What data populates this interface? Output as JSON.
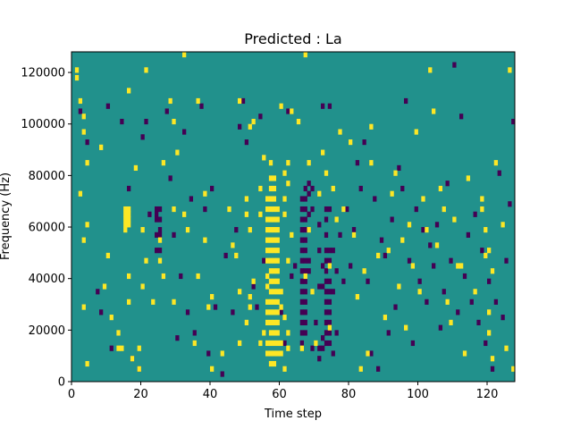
{
  "chart_data": {
    "type": "heatmap",
    "title": "Predicted : La",
    "xlabel": "Time step",
    "ylabel": "Frequency (Hz)",
    "xlim": [
      0,
      128
    ],
    "ylim": [
      0,
      128000
    ],
    "x_ticks": [
      "0",
      "20",
      "40",
      "60",
      "80",
      "100",
      "120"
    ],
    "x_tick_values": [
      0,
      20,
      40,
      60,
      80,
      100,
      120
    ],
    "y_ticks": [
      "0",
      "20000",
      "40000",
      "60000",
      "80000",
      "100000",
      "120000"
    ],
    "y_tick_values": [
      0,
      20000,
      40000,
      60000,
      80000,
      100000,
      120000
    ],
    "colormap": "viridis",
    "colors": {
      "low": "#440154",
      "mid": "#21918c",
      "high": "#fde725"
    },
    "grid": false,
    "legend": "none",
    "background_level": "mid",
    "high_cells": [
      [
        1,
        120000
      ],
      [
        1,
        117000
      ],
      [
        2,
        108000
      ],
      [
        3,
        102000
      ],
      [
        3,
        96000
      ],
      [
        4,
        84000
      ],
      [
        2,
        72000
      ],
      [
        4,
        60000
      ],
      [
        3,
        54000
      ],
      [
        3,
        28000
      ],
      [
        4,
        6000
      ],
      [
        8,
        90000
      ],
      [
        9,
        36000
      ],
      [
        10,
        48000
      ],
      [
        11,
        24000
      ],
      [
        13,
        18000
      ],
      [
        13,
        12000
      ],
      [
        14,
        12000
      ],
      [
        16,
        30000
      ],
      [
        16,
        40000
      ],
      [
        16,
        112000
      ],
      [
        17,
        8000
      ],
      [
        15,
        66000
      ],
      [
        15,
        64000
      ],
      [
        15,
        62000
      ],
      [
        15,
        60000
      ],
      [
        15,
        58000
      ],
      [
        16,
        66000
      ],
      [
        16,
        64000
      ],
      [
        16,
        62000
      ],
      [
        16,
        60000
      ],
      [
        18,
        82000
      ],
      [
        19,
        4000
      ],
      [
        19,
        12000
      ],
      [
        20,
        36000
      ],
      [
        20,
        58000
      ],
      [
        21,
        120000
      ],
      [
        21,
        46000
      ],
      [
        23,
        30000
      ],
      [
        25,
        46000
      ],
      [
        25,
        54000
      ],
      [
        26,
        40000
      ],
      [
        26,
        84000
      ],
      [
        28,
        108000
      ],
      [
        29,
        30000
      ],
      [
        29,
        66000
      ],
      [
        29,
        100000
      ],
      [
        30,
        88000
      ],
      [
        32,
        64000
      ],
      [
        32,
        126000
      ],
      [
        33,
        58000
      ],
      [
        35,
        14000
      ],
      [
        36,
        40000
      ],
      [
        36,
        108000
      ],
      [
        38,
        72000
      ],
      [
        38,
        54000
      ],
      [
        39,
        28000
      ],
      [
        40,
        32000
      ],
      [
        40,
        4000
      ],
      [
        43,
        10000
      ],
      [
        45,
        66000
      ],
      [
        46,
        52000
      ],
      [
        47,
        48000
      ],
      [
        48,
        14000
      ],
      [
        48,
        34000
      ],
      [
        48,
        108000
      ],
      [
        50,
        22000
      ],
      [
        50,
        64000
      ],
      [
        50,
        70000
      ],
      [
        51,
        28000
      ],
      [
        51,
        32000
      ],
      [
        51,
        98000
      ],
      [
        51,
        58000
      ],
      [
        52,
        100000
      ],
      [
        52,
        38000
      ],
      [
        54,
        14000
      ],
      [
        54,
        64000
      ],
      [
        54,
        74000
      ],
      [
        55,
        86000
      ],
      [
        55,
        18000
      ],
      [
        56,
        10000
      ],
      [
        56,
        14000
      ],
      [
        56,
        22000
      ],
      [
        56,
        26000
      ],
      [
        56,
        30000
      ],
      [
        56,
        36000
      ],
      [
        56,
        40000
      ],
      [
        56,
        46000
      ],
      [
        56,
        50000
      ],
      [
        56,
        54000
      ],
      [
        56,
        58000
      ],
      [
        56,
        62000
      ],
      [
        56,
        66000
      ],
      [
        56,
        70000
      ],
      [
        57,
        6000
      ],
      [
        57,
        10000
      ],
      [
        57,
        14000
      ],
      [
        57,
        18000
      ],
      [
        57,
        22000
      ],
      [
        57,
        26000
      ],
      [
        57,
        30000
      ],
      [
        57,
        34000
      ],
      [
        57,
        38000
      ],
      [
        57,
        42000
      ],
      [
        57,
        46000
      ],
      [
        57,
        50000
      ],
      [
        57,
        54000
      ],
      [
        57,
        58000
      ],
      [
        57,
        62000
      ],
      [
        57,
        66000
      ],
      [
        57,
        70000
      ],
      [
        57,
        74000
      ],
      [
        57,
        78000
      ],
      [
        57,
        84000
      ],
      [
        58,
        6000
      ],
      [
        58,
        10000
      ],
      [
        58,
        14000
      ],
      [
        58,
        18000
      ],
      [
        58,
        22000
      ],
      [
        58,
        26000
      ],
      [
        58,
        30000
      ],
      [
        58,
        34000
      ],
      [
        58,
        38000
      ],
      [
        58,
        42000
      ],
      [
        58,
        46000
      ],
      [
        58,
        50000
      ],
      [
        58,
        54000
      ],
      [
        58,
        58000
      ],
      [
        58,
        62000
      ],
      [
        58,
        66000
      ],
      [
        58,
        70000
      ],
      [
        58,
        74000
      ],
      [
        58,
        78000
      ],
      [
        59,
        10000
      ],
      [
        59,
        14000
      ],
      [
        59,
        18000
      ],
      [
        59,
        22000
      ],
      [
        59,
        26000
      ],
      [
        59,
        30000
      ],
      [
        59,
        34000
      ],
      [
        59,
        38000
      ],
      [
        59,
        42000
      ],
      [
        59,
        46000
      ],
      [
        59,
        50000
      ],
      [
        59,
        54000
      ],
      [
        59,
        58000
      ],
      [
        59,
        62000
      ],
      [
        59,
        66000
      ],
      [
        60,
        10000
      ],
      [
        60,
        14000
      ],
      [
        60,
        28000
      ],
      [
        60,
        34000
      ],
      [
        60,
        106000
      ],
      [
        61,
        4000
      ],
      [
        61,
        24000
      ],
      [
        61,
        80000
      ],
      [
        61,
        64000
      ],
      [
        61,
        70000
      ],
      [
        62,
        12000
      ],
      [
        62,
        18000
      ],
      [
        62,
        84000
      ],
      [
        62,
        76000
      ],
      [
        62,
        46000
      ],
      [
        63,
        56000
      ],
      [
        63,
        104000
      ],
      [
        65,
        100000
      ],
      [
        66,
        12000
      ],
      [
        67,
        40000
      ],
      [
        67,
        126000
      ],
      [
        68,
        84000
      ],
      [
        68,
        58000
      ],
      [
        69,
        34000
      ],
      [
        70,
        14000
      ],
      [
        71,
        72000
      ],
      [
        72,
        88000
      ],
      [
        73,
        80000
      ],
      [
        74,
        44000
      ],
      [
        74,
        20000
      ],
      [
        75,
        74000
      ],
      [
        76,
        62000
      ],
      [
        77,
        96000
      ],
      [
        78,
        66000
      ],
      [
        80,
        92000
      ],
      [
        81,
        56000
      ],
      [
        82,
        32000
      ],
      [
        83,
        4000
      ],
      [
        84,
        42000
      ],
      [
        85,
        10000
      ],
      [
        86,
        84000
      ],
      [
        86,
        98000
      ],
      [
        88,
        48000
      ],
      [
        90,
        24000
      ],
      [
        91,
        50000
      ],
      [
        92,
        72000
      ],
      [
        93,
        80000
      ],
      [
        94,
        36000
      ],
      [
        95,
        54000
      ],
      [
        96,
        20000
      ],
      [
        97,
        60000
      ],
      [
        98,
        44000
      ],
      [
        99,
        96000
      ],
      [
        100,
        34000
      ],
      [
        101,
        70000
      ],
      [
        102,
        58000
      ],
      [
        103,
        120000
      ],
      [
        104,
        104000
      ],
      [
        105,
        52000
      ],
      [
        106,
        74000
      ],
      [
        107,
        66000
      ],
      [
        108,
        30000
      ],
      [
        109,
        22000
      ],
      [
        110,
        62000
      ],
      [
        111,
        44000
      ],
      [
        112,
        44000
      ],
      [
        113,
        10000
      ],
      [
        114,
        78000
      ],
      [
        116,
        34000
      ],
      [
        118,
        70000
      ],
      [
        118,
        66000
      ],
      [
        119,
        58000
      ],
      [
        119,
        48000
      ],
      [
        120,
        50000
      ],
      [
        120,
        26000
      ],
      [
        120,
        18000
      ],
      [
        121,
        42000
      ],
      [
        121,
        8000
      ],
      [
        122,
        84000
      ],
      [
        124,
        60000
      ],
      [
        125,
        12000
      ],
      [
        126,
        120000
      ],
      [
        127,
        4000
      ]
    ],
    "low_cells": [
      [
        2,
        104000
      ],
      [
        4,
        92000
      ],
      [
        7,
        34000
      ],
      [
        8,
        26000
      ],
      [
        10,
        106000
      ],
      [
        11,
        12000
      ],
      [
        14,
        100000
      ],
      [
        16,
        74000
      ],
      [
        17,
        8000
      ],
      [
        19,
        4000
      ],
      [
        20,
        94000
      ],
      [
        21,
        100000
      ],
      [
        22,
        64000
      ],
      [
        24,
        66000
      ],
      [
        24,
        64000
      ],
      [
        24,
        62000
      ],
      [
        24,
        56000
      ],
      [
        25,
        66000
      ],
      [
        25,
        62000
      ],
      [
        25,
        58000
      ],
      [
        25,
        56000
      ],
      [
        24,
        50000
      ],
      [
        25,
        50000
      ],
      [
        27,
        104000
      ],
      [
        28,
        78000
      ],
      [
        29,
        56000
      ],
      [
        30,
        16000
      ],
      [
        31,
        40000
      ],
      [
        32,
        96000
      ],
      [
        33,
        26000
      ],
      [
        34,
        70000
      ],
      [
        35,
        18000
      ],
      [
        37,
        106000
      ],
      [
        38,
        66000
      ],
      [
        39,
        10000
      ],
      [
        40,
        74000
      ],
      [
        41,
        28000
      ],
      [
        43,
        2000
      ],
      [
        44,
        48000
      ],
      [
        46,
        26000
      ],
      [
        47,
        58000
      ],
      [
        48,
        98000
      ],
      [
        49,
        108000
      ],
      [
        50,
        92000
      ],
      [
        52,
        36000
      ],
      [
        53,
        28000
      ],
      [
        54,
        102000
      ],
      [
        55,
        46000
      ],
      [
        60,
        26000
      ],
      [
        61,
        14000
      ],
      [
        62,
        104000
      ],
      [
        63,
        40000
      ],
      [
        64,
        44000
      ],
      [
        66,
        70000
      ],
      [
        66,
        66000
      ],
      [
        66,
        62000
      ],
      [
        66,
        58000
      ],
      [
        66,
        54000
      ],
      [
        66,
        50000
      ],
      [
        66,
        46000
      ],
      [
        66,
        42000
      ],
      [
        66,
        38000
      ],
      [
        66,
        34000
      ],
      [
        66,
        30000
      ],
      [
        66,
        26000
      ],
      [
        66,
        22000
      ],
      [
        66,
        18000
      ],
      [
        66,
        14000
      ],
      [
        67,
        74000
      ],
      [
        67,
        70000
      ],
      [
        67,
        66000
      ],
      [
        67,
        62000
      ],
      [
        67,
        58000
      ],
      [
        67,
        54000
      ],
      [
        67,
        50000
      ],
      [
        67,
        46000
      ],
      [
        67,
        42000
      ],
      [
        67,
        38000
      ],
      [
        67,
        34000
      ],
      [
        67,
        30000
      ],
      [
        67,
        26000
      ],
      [
        67,
        22000
      ],
      [
        67,
        18000
      ],
      [
        68,
        76000
      ],
      [
        68,
        72000
      ],
      [
        68,
        64000
      ],
      [
        68,
        46000
      ],
      [
        68,
        42000
      ],
      [
        69,
        74000
      ],
      [
        69,
        66000
      ],
      [
        69,
        12000
      ],
      [
        70,
        22000
      ],
      [
        71,
        8000
      ],
      [
        71,
        12000
      ],
      [
        71,
        36000
      ],
      [
        71,
        50000
      ],
      [
        71,
        60000
      ],
      [
        72,
        12000
      ],
      [
        72,
        16000
      ],
      [
        72,
        36000
      ],
      [
        72,
        44000
      ],
      [
        72,
        106000
      ],
      [
        73,
        14000
      ],
      [
        73,
        18000
      ],
      [
        73,
        22000
      ],
      [
        73,
        26000
      ],
      [
        73,
        30000
      ],
      [
        73,
        34000
      ],
      [
        73,
        38000
      ],
      [
        73,
        42000
      ],
      [
        73,
        46000
      ],
      [
        73,
        50000
      ],
      [
        73,
        56000
      ],
      [
        73,
        62000
      ],
      [
        73,
        66000
      ],
      [
        74,
        14000
      ],
      [
        74,
        18000
      ],
      [
        74,
        22000
      ],
      [
        74,
        26000
      ],
      [
        74,
        30000
      ],
      [
        74,
        34000
      ],
      [
        74,
        38000
      ],
      [
        74,
        46000
      ],
      [
        74,
        50000
      ],
      [
        74,
        66000
      ],
      [
        74,
        106000
      ],
      [
        75,
        10000
      ],
      [
        75,
        34000
      ],
      [
        75,
        50000
      ],
      [
        76,
        42000
      ],
      [
        76,
        18000
      ],
      [
        77,
        56000
      ],
      [
        78,
        38000
      ],
      [
        79,
        66000
      ],
      [
        80,
        44000
      ],
      [
        81,
        58000
      ],
      [
        82,
        84000
      ],
      [
        83,
        74000
      ],
      [
        84,
        92000
      ],
      [
        85,
        38000
      ],
      [
        86,
        10000
      ],
      [
        87,
        70000
      ],
      [
        88,
        4000
      ],
      [
        89,
        54000
      ],
      [
        90,
        48000
      ],
      [
        91,
        18000
      ],
      [
        92,
        62000
      ],
      [
        93,
        28000
      ],
      [
        94,
        82000
      ],
      [
        95,
        74000
      ],
      [
        96,
        108000
      ],
      [
        97,
        46000
      ],
      [
        98,
        14000
      ],
      [
        99,
        66000
      ],
      [
        100,
        38000
      ],
      [
        101,
        58000
      ],
      [
        102,
        30000
      ],
      [
        103,
        52000
      ],
      [
        104,
        44000
      ],
      [
        105,
        60000
      ],
      [
        106,
        20000
      ],
      [
        107,
        34000
      ],
      [
        108,
        76000
      ],
      [
        109,
        46000
      ],
      [
        110,
        122000
      ],
      [
        111,
        26000
      ],
      [
        112,
        102000
      ],
      [
        113,
        40000
      ],
      [
        114,
        56000
      ],
      [
        115,
        30000
      ],
      [
        116,
        64000
      ],
      [
        117,
        22000
      ],
      [
        118,
        50000
      ],
      [
        119,
        14000
      ],
      [
        120,
        38000
      ],
      [
        121,
        4000
      ],
      [
        122,
        30000
      ],
      [
        123,
        80000
      ],
      [
        124,
        24000
      ],
      [
        125,
        46000
      ],
      [
        126,
        68000
      ],
      [
        127,
        100000
      ]
    ]
  }
}
